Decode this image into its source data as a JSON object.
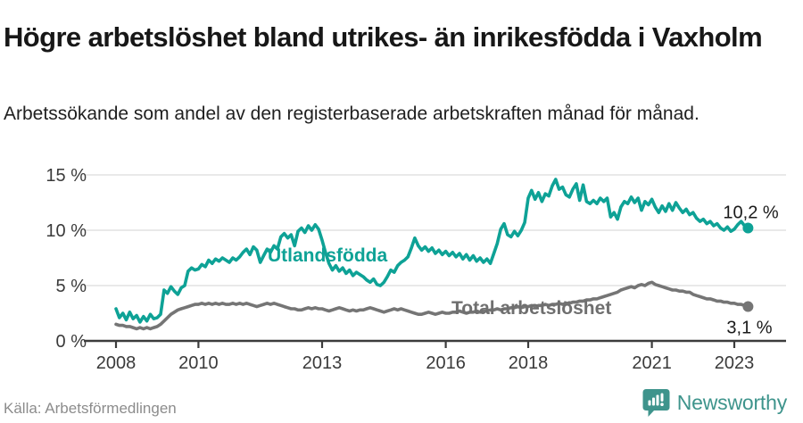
{
  "header": {
    "title": "Högre arbetslöshet bland utrikes- än inrikesfödda i Vaxholm",
    "subtitle": "Arbetssökande som andel av den registerbaserade arbetskraften månad för månad."
  },
  "footer": {
    "source": "Källa: Arbetsförmedlingen",
    "brand": "Newsworthy"
  },
  "colors": {
    "teal": "#0ea296",
    "gray": "#757575",
    "label_gray": "#6f6f6f",
    "axis": "#3c3c3c",
    "grid": "#dcdcdc",
    "tick_text": "#3a3a3a",
    "annotation_dark": "#1a1a1a",
    "logo_teal": "#3e948c"
  },
  "chart_data": {
    "type": "line",
    "title": "Högre arbetslöshet bland utrikes- än inrikesfödda i Vaxholm",
    "subtitle": "Arbetssökande som andel av den registerbaserade arbetskraften månad för månad.",
    "x_unit": "decimal_year",
    "x_start": 2008.0,
    "x_step": 0.083333,
    "xlim": [
      2007.2,
      2024.25
    ],
    "ylim": [
      0,
      16.5
    ],
    "grid": "horizontal",
    "y_ticks": [
      0,
      5,
      10,
      15
    ],
    "y_tick_suffix": " %",
    "x_ticks": [
      2008,
      2010,
      2013,
      2016,
      2018,
      2021,
      2023
    ],
    "series": [
      {
        "name": "Utlandsfödda",
        "end_label": "10,2 %",
        "end_value": 10.2,
        "values": [
          2.9,
          2.1,
          2.5,
          1.9,
          2.6,
          2.0,
          2.3,
          1.7,
          2.2,
          1.8,
          2.4,
          2.0,
          2.1,
          2.4,
          4.6,
          4.3,
          4.9,
          4.5,
          4.2,
          4.8,
          5.0,
          6.3,
          6.6,
          6.4,
          6.5,
          6.9,
          6.7,
          7.3,
          7.0,
          7.4,
          7.2,
          7.5,
          7.3,
          7.1,
          7.5,
          7.3,
          7.6,
          8.0,
          8.3,
          7.8,
          8.5,
          8.2,
          7.1,
          7.7,
          8.3,
          8.0,
          8.6,
          8.3,
          9.4,
          9.7,
          9.3,
          9.6,
          8.6,
          9.9,
          10.2,
          9.8,
          10.4,
          10.0,
          10.5,
          10.1,
          9.1,
          8.0,
          7.0,
          6.4,
          6.8,
          6.3,
          6.6,
          6.1,
          6.4,
          5.9,
          6.2,
          6.0,
          5.8,
          5.5,
          5.3,
          5.6,
          5.1,
          5.0,
          5.3,
          5.8,
          6.4,
          6.2,
          6.8,
          7.1,
          7.3,
          7.6,
          8.4,
          9.3,
          8.6,
          8.2,
          8.5,
          8.1,
          8.4,
          7.9,
          8.2,
          7.8,
          8.1,
          7.7,
          8.0,
          7.6,
          7.9,
          7.4,
          7.8,
          7.3,
          7.7,
          7.2,
          7.5,
          7.1,
          7.4,
          7.0,
          7.9,
          8.8,
          10.1,
          10.6,
          9.6,
          9.4,
          9.9,
          9.5,
          10.0,
          10.7,
          12.9,
          13.6,
          12.8,
          13.4,
          12.6,
          13.3,
          13.1,
          14.0,
          14.6,
          13.7,
          13.9,
          13.2,
          13.0,
          13.7,
          14.2,
          12.7,
          14.1,
          12.6,
          12.4,
          12.7,
          12.4,
          12.9,
          12.6,
          12.9,
          11.2,
          11.6,
          11.0,
          12.1,
          12.6,
          12.4,
          13.0,
          12.5,
          12.9,
          11.8,
          12.6,
          12.3,
          12.8,
          12.1,
          11.6,
          12.2,
          11.7,
          12.4,
          11.8,
          12.5,
          12.0,
          11.6,
          11.9,
          11.4,
          11.6,
          11.1,
          10.8,
          11.0,
          10.6,
          10.8,
          10.4,
          10.6,
          10.2,
          10.0,
          10.3,
          9.9,
          10.1,
          10.5,
          10.8,
          10.4,
          10.2
        ]
      },
      {
        "name": "Total arbetslöshet",
        "end_label": "3,1 %",
        "end_value": 3.1,
        "values": [
          1.5,
          1.4,
          1.4,
          1.3,
          1.3,
          1.2,
          1.1,
          1.2,
          1.1,
          1.2,
          1.1,
          1.2,
          1.3,
          1.5,
          1.8,
          2.1,
          2.4,
          2.6,
          2.8,
          2.9,
          3.0,
          3.1,
          3.2,
          3.3,
          3.3,
          3.4,
          3.3,
          3.4,
          3.3,
          3.4,
          3.3,
          3.4,
          3.3,
          3.3,
          3.4,
          3.3,
          3.4,
          3.3,
          3.4,
          3.3,
          3.2,
          3.1,
          3.2,
          3.3,
          3.4,
          3.3,
          3.4,
          3.3,
          3.2,
          3.1,
          3.0,
          2.9,
          2.9,
          2.8,
          2.8,
          2.9,
          3.0,
          2.9,
          3.0,
          2.9,
          2.9,
          2.8,
          2.7,
          2.8,
          2.9,
          3.0,
          2.9,
          2.8,
          2.7,
          2.8,
          2.7,
          2.8,
          2.8,
          2.9,
          3.0,
          2.9,
          2.8,
          2.7,
          2.6,
          2.7,
          2.8,
          2.9,
          2.8,
          2.9,
          2.8,
          2.7,
          2.6,
          2.5,
          2.4,
          2.4,
          2.5,
          2.6,
          2.5,
          2.4,
          2.5,
          2.6,
          2.5,
          2.5,
          2.6,
          2.6,
          2.7,
          2.6,
          2.5,
          2.6,
          2.6,
          2.7,
          2.6,
          2.7,
          2.7,
          2.8,
          2.8,
          2.9,
          2.8,
          2.9,
          2.9,
          3.0,
          3.0,
          3.1,
          3.0,
          3.1,
          3.1,
          3.2,
          3.1,
          3.2,
          3.2,
          3.3,
          3.2,
          3.3,
          3.3,
          3.4,
          3.3,
          3.4,
          3.4,
          3.5,
          3.5,
          3.6,
          3.6,
          3.7,
          3.7,
          3.8,
          3.8,
          3.9,
          4.0,
          4.1,
          4.2,
          4.3,
          4.4,
          4.6,
          4.7,
          4.8,
          4.9,
          4.8,
          5.0,
          5.1,
          5.0,
          5.2,
          5.3,
          5.1,
          5.0,
          4.9,
          4.8,
          4.7,
          4.6,
          4.6,
          4.5,
          4.5,
          4.4,
          4.4,
          4.2,
          4.1,
          4.0,
          3.9,
          3.8,
          3.8,
          3.7,
          3.6,
          3.6,
          3.5,
          3.5,
          3.4,
          3.4,
          3.3,
          3.3,
          3.2,
          3.1
        ]
      }
    ],
    "legend_position": "inline-labels"
  }
}
